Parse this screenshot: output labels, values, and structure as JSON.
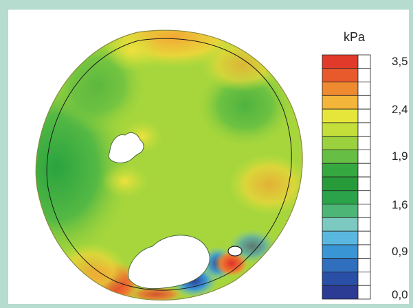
{
  "legend": {
    "unit": "kPa",
    "ticks": [
      "3,5",
      "2,4",
      "1,9",
      "1,6",
      "0,9",
      "0,0"
    ],
    "colors": [
      "#e23a2a",
      "#e85a2c",
      "#ee8a30",
      "#f3b53a",
      "#e6e63a",
      "#c4df3a",
      "#9ad13c",
      "#66bf44",
      "#35a93f",
      "#279b39",
      "#2aa34a",
      "#4db677",
      "#7cc9c2",
      "#5ab8e0",
      "#3a95d4",
      "#2f6fbd",
      "#2a4fa6",
      "#2c3b94"
    ]
  }
}
